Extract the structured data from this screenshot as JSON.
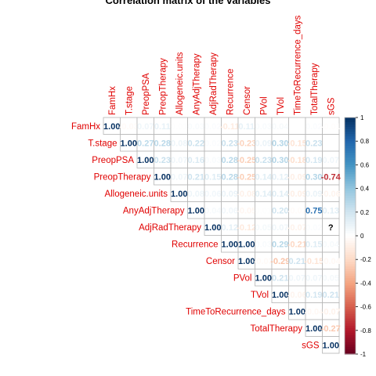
{
  "chart_data": {
    "type": "heatmap",
    "title": "Correlation matrix of the variables",
    "variables": [
      "FamHx",
      "T.stage",
      "PreopPSA",
      "PreopTherapy",
      "Allogeneic.units",
      "AnyAdjTherapy",
      "AdjRadTherapy",
      "Recurrence",
      "Censor",
      "PVol",
      "TVol",
      "TimeToRecurrence_days",
      "TotalTherapy",
      "sGS"
    ],
    "matrix": [
      [
        1.0,
        -0.03,
        0.07,
        0.11,
        0.01,
        0.03,
        0.02,
        -0.11,
        0.11,
        0.03,
        0.04,
        0.0,
        0.02,
        -0.01
      ],
      [
        null,
        1.0,
        0.27,
        0.28,
        0.08,
        0.22,
        0.02,
        0.23,
        -0.23,
        0.09,
        0.3,
        -0.15,
        0.23,
        0.0
      ],
      [
        null,
        null,
        1.0,
        0.23,
        0.07,
        0.16,
        0.03,
        0.28,
        -0.25,
        0.23,
        0.3,
        -0.18,
        0.19,
        0.07
      ],
      [
        null,
        null,
        null,
        1.0,
        0.07,
        0.21,
        0.15,
        0.28,
        -0.25,
        0.14,
        0.12,
        -0.09,
        0.3,
        -0.74
      ],
      [
        null,
        null,
        null,
        null,
        1.0,
        0.08,
        0.06,
        0.09,
        -0.08,
        0.14,
        0.14,
        -0.09,
        0.09,
        -0.06
      ],
      [
        null,
        null,
        null,
        null,
        null,
        1.0,
        0.04,
        0.06,
        -0.05,
        0.01,
        0.2,
        -0.02,
        0.75,
        0.13
      ],
      [
        null,
        null,
        null,
        null,
        null,
        null,
        1.0,
        0.12,
        -0.12,
        0.05,
        0.07,
        -0.07,
        0.02,
        null
      ],
      [
        null,
        null,
        null,
        null,
        null,
        null,
        null,
        1.0,
        1.0,
        0.03,
        0.29,
        -0.21,
        0.15,
        0.04
      ],
      [
        null,
        null,
        null,
        null,
        null,
        null,
        null,
        null,
        1.0,
        -0.03,
        -0.29,
        0.21,
        -0.15,
        -0.04
      ],
      [
        null,
        null,
        null,
        null,
        null,
        null,
        null,
        null,
        null,
        1.0,
        0.21,
        0.07,
        0.07,
        0.05
      ],
      [
        null,
        null,
        null,
        null,
        null,
        null,
        null,
        null,
        null,
        null,
        1.0,
        -0.06,
        0.19,
        0.21
      ],
      [
        null,
        null,
        null,
        null,
        null,
        null,
        null,
        null,
        null,
        null,
        null,
        1.0,
        -0.04,
        -0.07
      ],
      [
        null,
        null,
        null,
        null,
        null,
        null,
        null,
        null,
        null,
        null,
        null,
        null,
        1.0,
        -0.27
      ],
      [
        null,
        null,
        null,
        null,
        null,
        null,
        null,
        null,
        null,
        null,
        null,
        null,
        null,
        1.0
      ]
    ],
    "missing_label": "?",
    "colorbar": {
      "range": [
        -1,
        1
      ],
      "ticks": [
        -1,
        -0.8,
        -0.6,
        -0.4,
        -0.2,
        0,
        0.2,
        0.4,
        0.6,
        0.8,
        1
      ],
      "palette": [
        "#67001f",
        "#b2182b",
        "#d6604d",
        "#f4a582",
        "#fddbc7",
        "#ffffff",
        "#d1e5f0",
        "#92c5de",
        "#4393c3",
        "#2166ac",
        "#053061"
      ]
    },
    "label_color": "#e00000"
  }
}
